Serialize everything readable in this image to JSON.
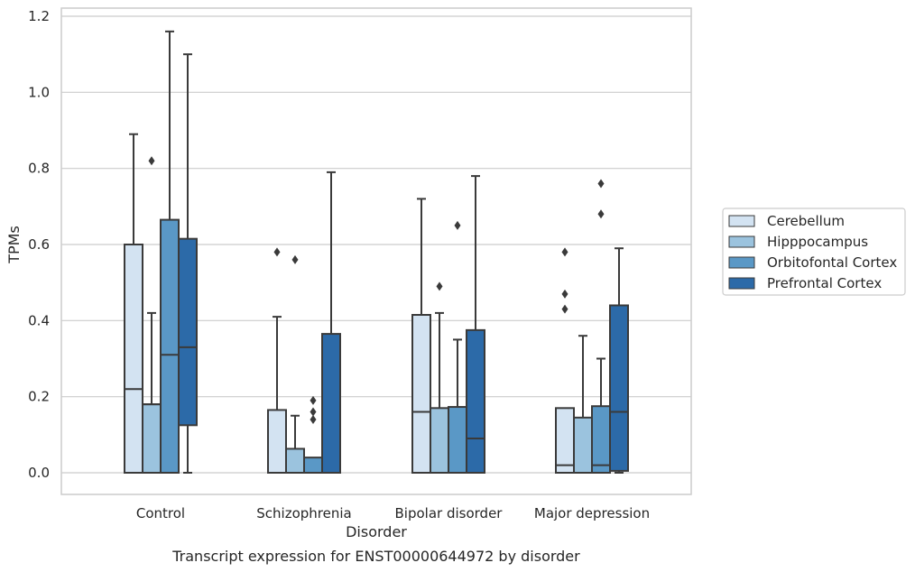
{
  "chart_data": {
    "type": "box",
    "xlabel": "Disorder",
    "ylabel": "TPMs",
    "caption": "Transcript expression for ENST00000644972 by disorder",
    "ylim": [
      -0.055,
      1.225
    ],
    "yticks": [
      0.0,
      0.2,
      0.4,
      0.6,
      0.8,
      1.0,
      1.2
    ],
    "ytick_labels": [
      "0.0",
      "0.2",
      "0.4",
      "0.6",
      "0.8",
      "1.0",
      "1.2"
    ],
    "grid": "horizontal",
    "legend_position": "right",
    "categories": [
      "Control",
      "Schizophrenia",
      "Bipolar disorder",
      "Major depression"
    ],
    "series": [
      {
        "name": "Cerebellum",
        "color": "#d3e3f2",
        "boxes": [
          {
            "q1": 0.0,
            "median": 0.22,
            "q3": 0.6,
            "whisker_low": 0.0,
            "whisker_high": 0.89,
            "outliers": []
          },
          {
            "q1": 0.0,
            "median": 0.0,
            "q3": 0.165,
            "whisker_low": 0.0,
            "whisker_high": 0.41,
            "outliers": [
              0.58
            ]
          },
          {
            "q1": 0.0,
            "median": 0.16,
            "q3": 0.415,
            "whisker_low": 0.0,
            "whisker_high": 0.72,
            "outliers": []
          },
          {
            "q1": 0.0,
            "median": 0.02,
            "q3": 0.17,
            "whisker_low": 0.0,
            "whisker_high": 0.17,
            "outliers": [
              0.43,
              0.47,
              0.58
            ]
          }
        ]
      },
      {
        "name": "Hipppocampus",
        "color": "#9bc3de",
        "boxes": [
          {
            "q1": 0.0,
            "median": 0.18,
            "q3": 0.18,
            "whisker_low": 0.0,
            "whisker_high": 0.42,
            "outliers": [
              0.82
            ]
          },
          {
            "q1": 0.0,
            "median": 0.0,
            "q3": 0.063,
            "whisker_low": 0.0,
            "whisker_high": 0.15,
            "outliers": [
              0.56
            ]
          },
          {
            "q1": 0.0,
            "median": 0.0,
            "q3": 0.17,
            "whisker_low": 0.0,
            "whisker_high": 0.42,
            "outliers": [
              0.49
            ]
          },
          {
            "q1": 0.0,
            "median": 0.0,
            "q3": 0.145,
            "whisker_low": 0.0,
            "whisker_high": 0.36,
            "outliers": []
          }
        ]
      },
      {
        "name": "Orbitofontal Cortex",
        "color": "#5a98c6",
        "boxes": [
          {
            "q1": 0.0,
            "median": 0.31,
            "q3": 0.665,
            "whisker_low": 0.0,
            "whisker_high": 1.16,
            "outliers": []
          },
          {
            "q1": 0.0,
            "median": 0.0,
            "q3": 0.04,
            "whisker_low": 0.0,
            "whisker_high": 0.04,
            "outliers": [
              0.14,
              0.16,
              0.19
            ]
          },
          {
            "q1": 0.0,
            "median": 0.0,
            "q3": 0.173,
            "whisker_low": 0.0,
            "whisker_high": 0.35,
            "outliers": [
              0.65
            ]
          },
          {
            "q1": 0.0,
            "median": 0.02,
            "q3": 0.175,
            "whisker_low": 0.0,
            "whisker_high": 0.3,
            "outliers": [
              0.68,
              0.76
            ]
          }
        ]
      },
      {
        "name": "Prefrontal Cortex",
        "color": "#2c6aa8",
        "boxes": [
          {
            "q1": 0.125,
            "median": 0.33,
            "q3": 0.615,
            "whisker_low": 0.0,
            "whisker_high": 1.1,
            "outliers": []
          },
          {
            "q1": 0.0,
            "median": 0.0,
            "q3": 0.365,
            "whisker_low": 0.0,
            "whisker_high": 0.79,
            "outliers": []
          },
          {
            "q1": 0.0,
            "median": 0.09,
            "q3": 0.375,
            "whisker_low": 0.0,
            "whisker_high": 0.78,
            "outliers": []
          },
          {
            "q1": 0.005,
            "median": 0.16,
            "q3": 0.44,
            "whisker_low": 0.0,
            "whisker_high": 0.59,
            "outliers": []
          }
        ]
      }
    ]
  }
}
